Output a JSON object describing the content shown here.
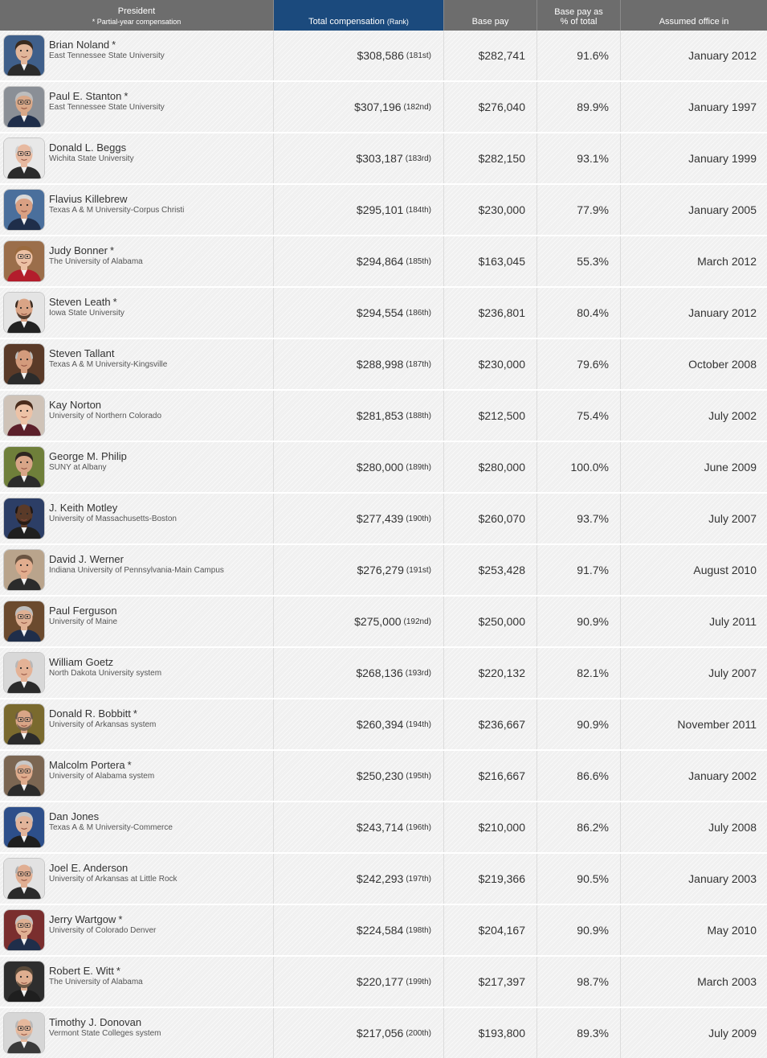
{
  "header": {
    "president": "President",
    "partial_note": "* Partial-year compensation",
    "total_comp": "Total compensation",
    "rank_note": "(Rank)",
    "base_pay": "Base pay",
    "base_pct_line1": "Base pay as",
    "base_pct_line2": "% of total",
    "assumed_office": "Assumed office in"
  },
  "colors": {
    "header_bg": "#6d6d6d",
    "header_active_bg": "#1b4a7d",
    "row_bg": "#f0f0f0"
  },
  "rows": [
    {
      "name": "Brian Noland",
      "partial": "*",
      "university": "East Tennessee State University",
      "total": "$308,586",
      "rank": "(181st)",
      "base": "$282,741",
      "pct": "91.6%",
      "office": "January 2012",
      "photo": {
        "bg": "#3f5f8a",
        "skin": "#e2b69a",
        "hair": "#3a2a1e",
        "shirt": "#2b2b2b",
        "bald": false,
        "glasses": false,
        "beard": false
      }
    },
    {
      "name": "Paul E. Stanton",
      "partial": "*",
      "university": "East Tennessee State University",
      "total": "$307,196",
      "rank": "(182nd)",
      "base": "$276,040",
      "pct": "89.9%",
      "office": "January 1997",
      "photo": {
        "bg": "#8a8f96",
        "skin": "#d9a888",
        "hair": "#bdbdbd",
        "shirt": "#1f2e4a",
        "bald": false,
        "glasses": true,
        "beard": false
      }
    },
    {
      "name": "Donald L. Beggs",
      "partial": "",
      "university": "Wichita State University",
      "total": "$303,187",
      "rank": "(183rd)",
      "base": "$282,150",
      "pct": "93.1%",
      "office": "January 1999",
      "photo": {
        "bg": "#e8e8e8",
        "skin": "#e7b9a0",
        "hair": "#cfcfcf",
        "shirt": "#2b2b2b",
        "bald": true,
        "glasses": true,
        "beard": false
      }
    },
    {
      "name": "Flavius Killebrew",
      "partial": "",
      "university": "Texas A & M University-Corpus Christi",
      "total": "$295,101",
      "rank": "(184th)",
      "base": "$230,000",
      "pct": "77.9%",
      "office": "January 2005",
      "photo": {
        "bg": "#4a6f9c",
        "skin": "#d9a083",
        "hair": "#d8d8d8",
        "shirt": "#1f2e4a",
        "bald": false,
        "glasses": false,
        "beard": false
      }
    },
    {
      "name": "Judy Bonner",
      "partial": "*",
      "university": "The University of Alabama",
      "total": "$294,864",
      "rank": "(185th)",
      "base": "$163,045",
      "pct": "55.3%",
      "office": "March 2012",
      "photo": {
        "bg": "#9b6e4a",
        "skin": "#ecc0a4",
        "hair": "#9a6a3e",
        "shirt": "#b31d2c",
        "bald": false,
        "glasses": true,
        "beard": false
      }
    },
    {
      "name": "Steven Leath",
      "partial": "*",
      "university": "Iowa State University",
      "total": "$294,554",
      "rank": "(186th)",
      "base": "$236,801",
      "pct": "80.4%",
      "office": "January 2012",
      "photo": {
        "bg": "#e4e4e4",
        "skin": "#d9a486",
        "hair": "#3b2b20",
        "shirt": "#222222",
        "bald": true,
        "glasses": false,
        "beard": true
      }
    },
    {
      "name": "Steven Tallant",
      "partial": "",
      "university": "Texas A & M University-Kingsville",
      "total": "$288,998",
      "rank": "(187th)",
      "base": "$230,000",
      "pct": "79.6%",
      "office": "October 2008",
      "photo": {
        "bg": "#5a3a28",
        "skin": "#d39b7c",
        "hair": "#bcbcbc",
        "shirt": "#2b2b2b",
        "bald": true,
        "glasses": false,
        "beard": false
      }
    },
    {
      "name": "Kay Norton",
      "partial": "",
      "university": "University of Northern Colorado",
      "total": "$281,853",
      "rank": "(188th)",
      "base": "$212,500",
      "pct": "75.4%",
      "office": "July 2002",
      "photo": {
        "bg": "#cfc3b8",
        "skin": "#edc2a6",
        "hair": "#4a2c1c",
        "shirt": "#5b1f2a",
        "bald": false,
        "glasses": false,
        "beard": false
      }
    },
    {
      "name": "George M. Philip",
      "partial": "",
      "university": "SUNY at Albany",
      "total": "$280,000",
      "rank": "(189th)",
      "base": "$280,000",
      "pct": "100.0%",
      "office": "June 2009",
      "photo": {
        "bg": "#6f7f3a",
        "skin": "#d8a587",
        "hair": "#2e2620",
        "shirt": "#2b2b2b",
        "bald": false,
        "glasses": false,
        "beard": false
      }
    },
    {
      "name": "J. Keith Motley",
      "partial": "",
      "university": "University of Massachusetts-Boston",
      "total": "$277,439",
      "rank": "(190th)",
      "base": "$260,070",
      "pct": "93.7%",
      "office": "July 2007",
      "photo": {
        "bg": "#2c3e66",
        "skin": "#5a3a28",
        "hair": "#1e1612",
        "shirt": "#1f1f1f",
        "bald": true,
        "glasses": false,
        "beard": true
      }
    },
    {
      "name": "David J. Werner",
      "partial": "",
      "university": "Indiana University of Pennsylvania-Main Campus",
      "total": "$276,279",
      "rank": "(191st)",
      "base": "$253,428",
      "pct": "91.7%",
      "office": "August 2010",
      "photo": {
        "bg": "#b9a48c",
        "skin": "#e1ad8e",
        "hair": "#6a5442",
        "shirt": "#2b2b2b",
        "bald": false,
        "glasses": false,
        "beard": false
      }
    },
    {
      "name": "Paul Ferguson",
      "partial": "",
      "university": "University of Maine",
      "total": "$275,000",
      "rank": "(192nd)",
      "base": "$250,000",
      "pct": "90.9%",
      "office": "July 2011",
      "photo": {
        "bg": "#6b4a2e",
        "skin": "#dfb093",
        "hair": "#bdbdbd",
        "shirt": "#1f2e4a",
        "bald": false,
        "glasses": true,
        "beard": false
      }
    },
    {
      "name": "William Goetz",
      "partial": "",
      "university": "North Dakota University system",
      "total": "$268,136",
      "rank": "(193rd)",
      "base": "$220,132",
      "pct": "82.1%",
      "office": "July 2007",
      "photo": {
        "bg": "#d8d8d8",
        "skin": "#e4b296",
        "hair": "#b8b8b8",
        "shirt": "#2b2b2b",
        "bald": true,
        "glasses": false,
        "beard": false
      }
    },
    {
      "name": "Donald R. Bobbitt",
      "partial": "*",
      "university": "University of Arkansas system",
      "total": "$260,394",
      "rank": "(194th)",
      "base": "$236,667",
      "pct": "90.9%",
      "office": "November 2011",
      "photo": {
        "bg": "#7a6a2e",
        "skin": "#d9a587",
        "hair": "#6a5a4a",
        "shirt": "#2b2b2b",
        "bald": true,
        "glasses": true,
        "beard": true
      }
    },
    {
      "name": "Malcolm Portera",
      "partial": "*",
      "university": "University of Alabama system",
      "total": "$250,230",
      "rank": "(195th)",
      "base": "$216,667",
      "pct": "86.6%",
      "office": "January 2002",
      "photo": {
        "bg": "#7b6652",
        "skin": "#deab8c",
        "hair": "#c8c8c8",
        "shirt": "#2b2b2b",
        "bald": false,
        "glasses": true,
        "beard": false
      }
    },
    {
      "name": "Dan Jones",
      "partial": "",
      "university": "Texas A & M University-Commerce",
      "total": "$243,714",
      "rank": "(196th)",
      "base": "$210,000",
      "pct": "86.2%",
      "office": "July 2008",
      "photo": {
        "bg": "#2d4f8a",
        "skin": "#e2b49a",
        "hair": "#c4c4c4",
        "shirt": "#1f1f1f",
        "bald": false,
        "glasses": false,
        "beard": false
      }
    },
    {
      "name": "Joel E. Anderson",
      "partial": "",
      "university": "University of Arkansas at Little Rock",
      "total": "$242,293",
      "rank": "(197th)",
      "base": "$219,366",
      "pct": "90.5%",
      "office": "January 2003",
      "photo": {
        "bg": "#e2e2e2",
        "skin": "#e0ae92",
        "hair": "#b0b0b0",
        "shirt": "#2b2b2b",
        "bald": true,
        "glasses": true,
        "beard": false
      }
    },
    {
      "name": "Jerry Wartgow",
      "partial": "*",
      "university": "University of Colorado Denver",
      "total": "$224,584",
      "rank": "(198th)",
      "base": "$204,167",
      "pct": "90.9%",
      "office": "May 2010",
      "photo": {
        "bg": "#7a2e2e",
        "skin": "#e0b093",
        "hair": "#c2c2c2",
        "shirt": "#1f2e4a",
        "bald": false,
        "glasses": true,
        "beard": false
      }
    },
    {
      "name": "Robert E. Witt",
      "partial": "*",
      "university": "The University of Alabama",
      "total": "$220,177",
      "rank": "(199th)",
      "base": "$217,397",
      "pct": "98.7%",
      "office": "March 2003",
      "photo": {
        "bg": "#2e2e2e",
        "skin": "#dfae90",
        "hair": "#5a4a3a",
        "shirt": "#1f1f1f",
        "bald": false,
        "glasses": false,
        "beard": true
      }
    },
    {
      "name": "Timothy J. Donovan",
      "partial": "",
      "university": "Vermont State Colleges system",
      "total": "$217,056",
      "rank": "(200th)",
      "base": "$193,800",
      "pct": "89.3%",
      "office": "July 2009",
      "photo": {
        "bg": "#d6d6d6",
        "skin": "#e6b89c",
        "hair": "#b9b9b9",
        "shirt": "#3a3a3a",
        "bald": true,
        "glasses": true,
        "beard": true
      }
    }
  ]
}
